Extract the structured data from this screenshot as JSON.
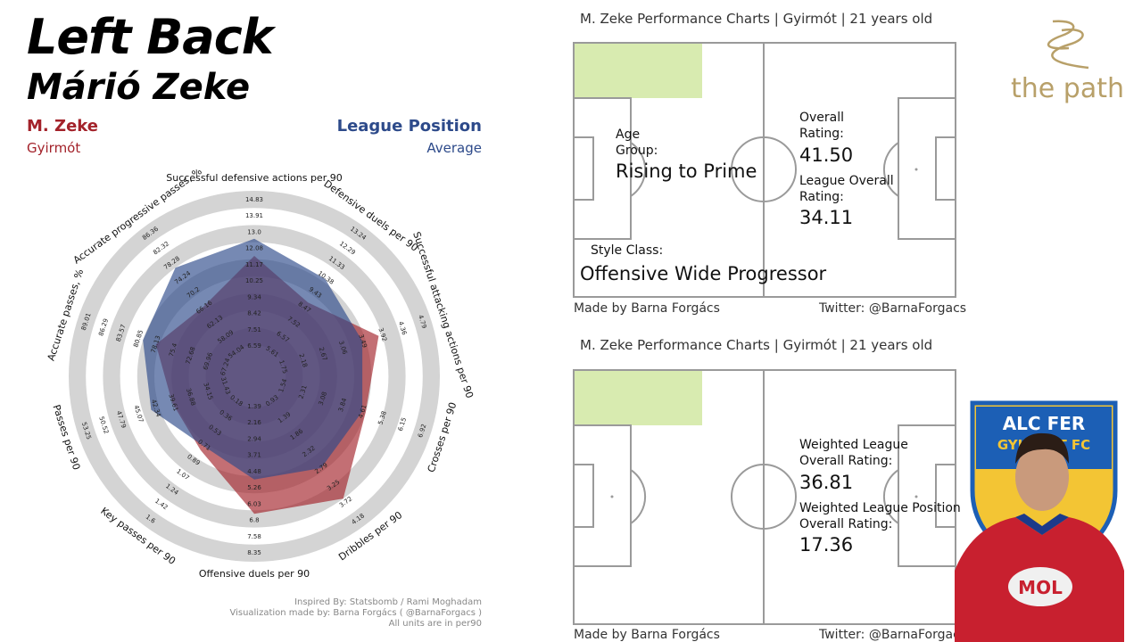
{
  "header": {
    "position": "Left Back",
    "player": "Márió Zeke",
    "legend_player": "M. Zeke",
    "legend_player_club": "Gyirmót",
    "legend_avg": "League Position",
    "legend_avg_sub": "Average"
  },
  "colors": {
    "player": "#a3222a",
    "average": "#2d4a8a",
    "ring": "#d4d4d4",
    "pitch_line": "#9a9a9a",
    "highlight": "#d8ebb0"
  },
  "radar": {
    "metrics": [
      {
        "label": "Successful defensive actions per 90",
        "ticks": [
          "6.59",
          "7.51",
          "8.42",
          "9.34",
          "10.25",
          "11.17",
          "12.08",
          "13.0",
          "13.91",
          "14.83"
        ]
      },
      {
        "label": "Defensive duels per 90",
        "ticks": [
          "5.61",
          "6.57",
          "7.52",
          "8.47",
          "9.43",
          "10.38",
          "11.33",
          "12.29",
          "13.24"
        ]
      },
      {
        "label": "Successful attacking actions per 90",
        "ticks": [
          "1.75",
          "2.18",
          "2.67",
          "3.06",
          "3.49",
          "3.92",
          "4.36",
          "4.79"
        ]
      },
      {
        "label": "Crosses per 90",
        "ticks": [
          "1.54",
          "2.31",
          "3.08",
          "3.84",
          "4.61",
          "5.38",
          "6.15",
          "6.92"
        ]
      },
      {
        "label": "Dribbles per 90",
        "ticks": [
          "0.93",
          "1.39",
          "1.86",
          "2.32",
          "2.79",
          "3.25",
          "3.72",
          "4.18"
        ]
      },
      {
        "label": "Offensive duels per 90",
        "ticks": [
          "1.39",
          "2.16",
          "2.94",
          "3.71",
          "4.48",
          "5.26",
          "6.03",
          "6.8",
          "7.58",
          "8.35"
        ]
      },
      {
        "label": "Key passes per 90",
        "ticks": [
          "0.18",
          "0.36",
          "0.53",
          "0.71",
          "0.89",
          "1.07",
          "1.24",
          "1.42",
          "1.6"
        ]
      },
      {
        "label": "Passes per 90",
        "ticks": [
          "31.43",
          "34.15",
          "36.88",
          "39.61",
          "42.34",
          "45.07",
          "47.79",
          "50.52",
          "53.25"
        ]
      },
      {
        "label": "Accurate passes, %",
        "ticks": [
          "67.24",
          "69.96",
          "72.68",
          "75.4",
          "78.13",
          "80.85",
          "83.57",
          "86.29",
          "89.01"
        ]
      },
      {
        "label": "Accurate progressive passes, %",
        "ticks": [
          "54.04",
          "58.09",
          "62.13",
          "66.16",
          "70.2",
          "74.24",
          "78.28",
          "82.32",
          "86.36"
        ]
      }
    ],
    "player_values_frac": [
      0.62,
      0.45,
      0.68,
      0.6,
      0.8,
      0.72,
      0.45,
      0.42,
      0.52,
      0.42
    ],
    "average_values_frac": [
      0.72,
      0.62,
      0.58,
      0.58,
      0.58,
      0.52,
      0.42,
      0.55,
      0.6,
      0.7
    ]
  },
  "credits": {
    "line1": "Inspired By: Statsbomb / Rami Moghadam",
    "line2": "Visualization made by: Barna Forgács ( @BarnaForgacs )",
    "line3": "All units are in per90"
  },
  "chart1": {
    "title": "M. Zeke Performance Charts |  Gyirmót  | 21 years old",
    "age_label": "Age\nGroup:",
    "age_value": "Rising to Prime",
    "overall_label": "Overall\nRating:",
    "overall_value": "41.50",
    "league_label": "League Overall\nRating:",
    "league_value": "34.11",
    "style_label": "Style  Class:",
    "style_value": "Offensive Wide Progressor",
    "footer_left": "Made by Barna Forgács",
    "footer_right": "Twitter: @BarnaForgacs"
  },
  "chart2": {
    "title": "M. Zeke Performance Charts |  Gyirmót  | 21 years old",
    "wl_label": "Weighted League\nOverall Rating:",
    "wl_value": "36.81",
    "wlp_label": "Weighted League Position\nOverall Rating:",
    "wlp_value": "17.36",
    "footer_left": "Made by Barna Forgács",
    "footer_right": "Twitter: @BarnaForgacs"
  },
  "logo": {
    "text": "the path"
  },
  "badge": {
    "text_top": "ALC FER",
    "text_mid": "GYIRMÓT FC",
    "shirt_sponsor": "MOL"
  }
}
